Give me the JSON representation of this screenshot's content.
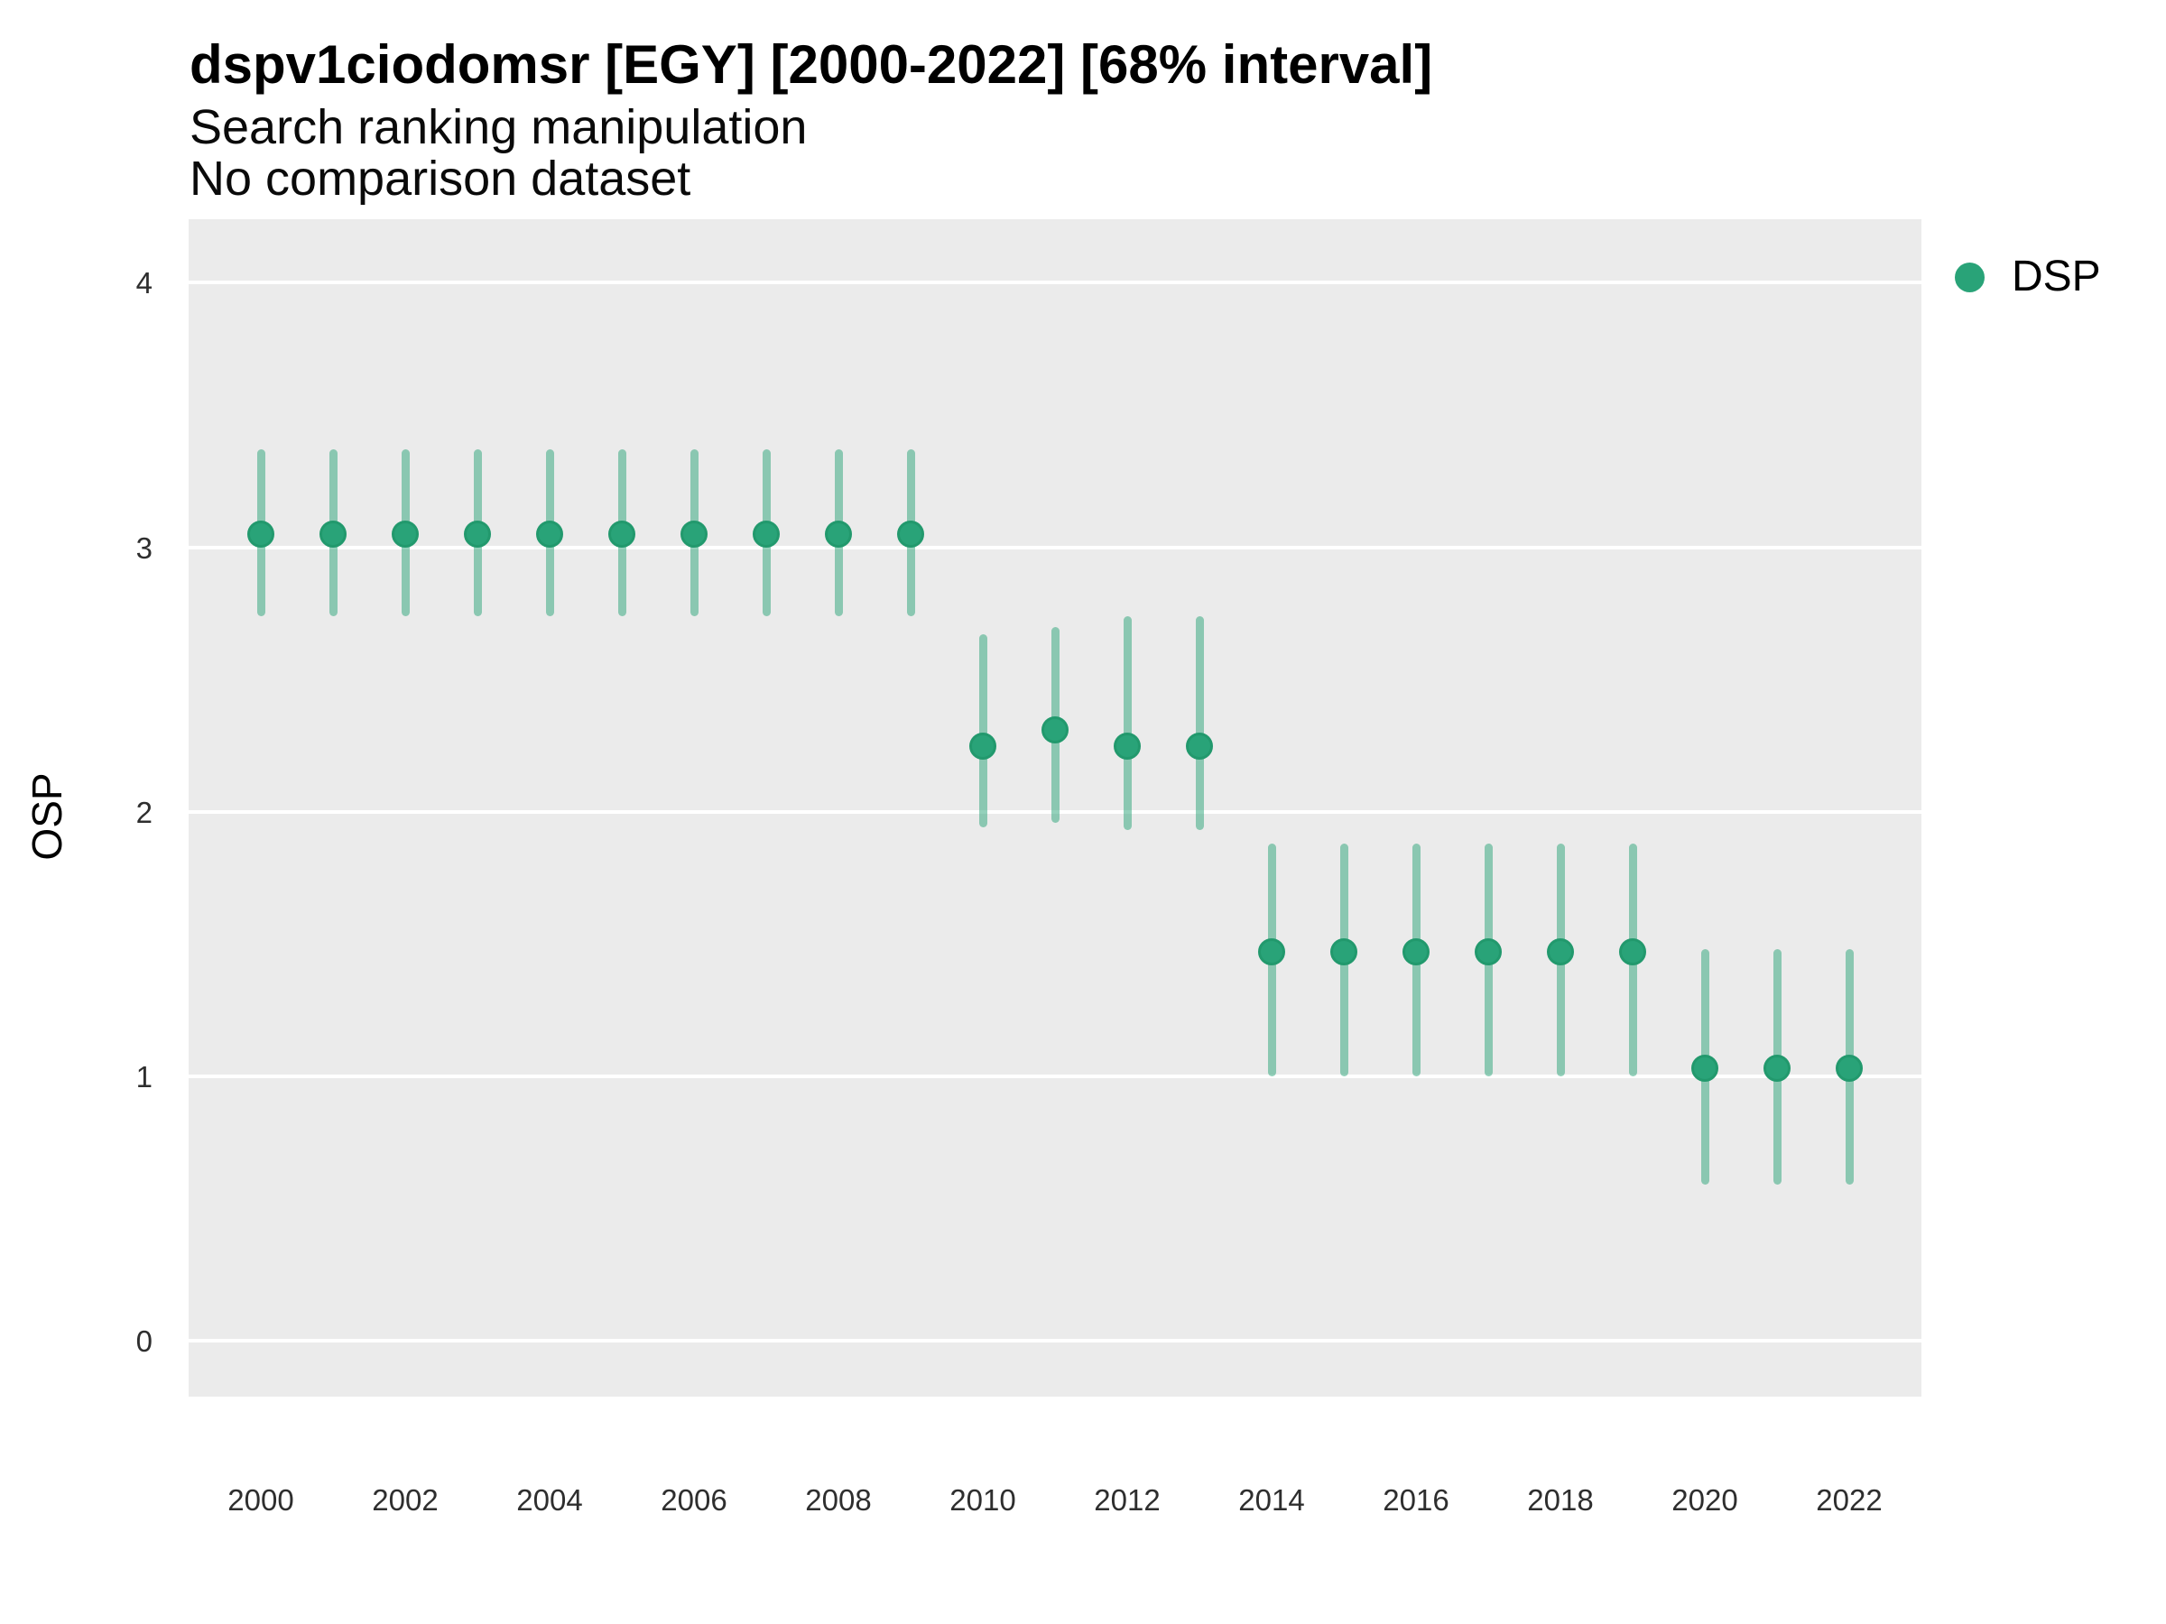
{
  "header": {
    "title": "dspv1ciodomsr [EGY] [2000-2022] [68% interval]",
    "subtitle1": "Search ranking manipulation",
    "subtitle2": "No comparison dataset"
  },
  "legend": {
    "label": "DSP",
    "dot_color": "#29a378"
  },
  "chart_data": {
    "type": "pointrange",
    "title": "dspv1ciodomsr [EGY] [2000-2022] [68% interval]",
    "subtitle": "Search ranking manipulation",
    "caption": "No comparison dataset",
    "xlabel": "",
    "ylabel": "OSP",
    "legend_entries": [
      "DSP"
    ],
    "legend_position": "right-top",
    "grid": "major-horizontal-white-on-gray",
    "xlim": [
      1999,
      2023
    ],
    "ylim": [
      -0.21,
      4.24
    ],
    "xticks": [
      2000,
      2002,
      2004,
      2006,
      2008,
      2010,
      2012,
      2014,
      2016,
      2018,
      2020,
      2022
    ],
    "yticks": [
      0,
      1,
      2,
      3,
      4
    ],
    "series": [
      {
        "name": "DSP",
        "x": [
          2000,
          2001,
          2002,
          2003,
          2004,
          2005,
          2006,
          2007,
          2008,
          2009,
          2010,
          2011,
          2012,
          2013,
          2014,
          2015,
          2016,
          2017,
          2018,
          2019,
          2020,
          2021,
          2022
        ],
        "y": [
          3.05,
          3.05,
          3.05,
          3.05,
          3.05,
          3.05,
          3.05,
          3.05,
          3.05,
          3.05,
          2.25,
          2.31,
          2.25,
          2.25,
          1.47,
          1.47,
          1.47,
          1.47,
          1.47,
          1.47,
          1.03,
          1.03,
          1.03
        ],
        "lo": [
          2.74,
          2.74,
          2.74,
          2.74,
          2.74,
          2.74,
          2.74,
          2.74,
          2.74,
          2.74,
          1.94,
          1.96,
          1.93,
          1.93,
          1.0,
          1.0,
          1.0,
          1.0,
          1.0,
          1.0,
          0.59,
          0.59,
          0.59
        ],
        "hi": [
          3.37,
          3.37,
          3.37,
          3.37,
          3.37,
          3.37,
          3.37,
          3.37,
          3.37,
          3.37,
          2.67,
          2.7,
          2.74,
          2.74,
          1.88,
          1.88,
          1.88,
          1.88,
          1.88,
          1.88,
          1.48,
          1.48,
          1.48
        ]
      }
    ],
    "colors": {
      "point_fill": "#29a378",
      "point_border": "#22996d",
      "interval_bar": "rgba(41,163,120,0.5)",
      "panel_background": "#ebebeb",
      "gridline": "#ffffff"
    }
  }
}
